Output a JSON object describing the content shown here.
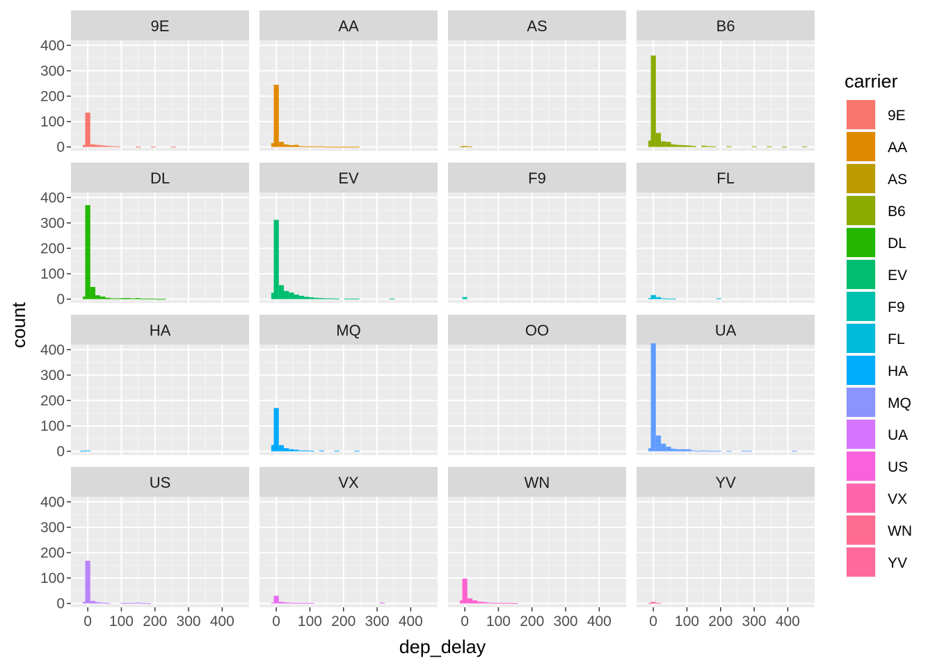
{
  "chart_data": {
    "type": "bar",
    "subtype": "faceted-histogram",
    "xlabel": "dep_delay",
    "ylabel": "count",
    "xlim": [
      -50,
      480
    ],
    "ylim": [
      -15,
      420
    ],
    "x_ticks": [
      0,
      100,
      200,
      300,
      400
    ],
    "y_ticks": [
      0,
      100,
      200,
      300,
      400
    ],
    "bin_width": 15,
    "grid": true,
    "facet_columns": 4,
    "legend": {
      "title": "carrier",
      "placement": "right",
      "entries": [
        {
          "label": "9E",
          "color": "#F8766D"
        },
        {
          "label": "AA",
          "color": "#E18A00"
        },
        {
          "label": "AS",
          "color": "#BE9C00"
        },
        {
          "label": "B6",
          "color": "#8CAB00"
        },
        {
          "label": "DL",
          "color": "#24B700"
        },
        {
          "label": "EV",
          "color": "#00BE70"
        },
        {
          "label": "F9",
          "color": "#00C1AB"
        },
        {
          "label": "FL",
          "color": "#00BBDA"
        },
        {
          "label": "HA",
          "color": "#00ACFC"
        },
        {
          "label": "MQ",
          "color": "#8B93FF"
        },
        {
          "label": "UA",
          "color": "#D575FE"
        },
        {
          "label": "US",
          "color": "#F962DD"
        },
        {
          "label": "VX",
          "color": "#FF65AC"
        },
        {
          "label": "WN",
          "color": "#FF6C91"
        },
        {
          "label": "YV",
          "color": "#FF699C"
        }
      ]
    },
    "panels": [
      {
        "label": "9E",
        "color": "#F8766D",
        "bins": [
          {
            "x": -7.5,
            "count": 8
          },
          {
            "x": 0,
            "count": 135
          },
          {
            "x": 15,
            "count": 10
          },
          {
            "x": 30,
            "count": 8
          },
          {
            "x": 45,
            "count": 6
          },
          {
            "x": 60,
            "count": 4
          },
          {
            "x": 75,
            "count": 3
          },
          {
            "x": 90,
            "count": 2
          },
          {
            "x": 150,
            "count": 1
          },
          {
            "x": 195,
            "count": 1
          },
          {
            "x": 255,
            "count": 1
          }
        ]
      },
      {
        "label": "AA",
        "color": "#E18A00",
        "bins": [
          {
            "x": -7.5,
            "count": 15
          },
          {
            "x": 0,
            "count": 245
          },
          {
            "x": 15,
            "count": 20
          },
          {
            "x": 30,
            "count": 10
          },
          {
            "x": 45,
            "count": 7
          },
          {
            "x": 60,
            "count": 8
          },
          {
            "x": 75,
            "count": 3
          },
          {
            "x": 90,
            "count": 2
          },
          {
            "x": 105,
            "count": 3
          },
          {
            "x": 120,
            "count": 2
          },
          {
            "x": 135,
            "count": 2
          },
          {
            "x": 150,
            "count": 1
          },
          {
            "x": 165,
            "count": 1
          },
          {
            "x": 180,
            "count": 1
          },
          {
            "x": 195,
            "count": 1
          },
          {
            "x": 210,
            "count": 1
          },
          {
            "x": 225,
            "count": 1
          },
          {
            "x": 240,
            "count": 1
          }
        ]
      },
      {
        "label": "AS",
        "color": "#BE9C00",
        "bins": [
          {
            "x": -7.5,
            "count": 2
          },
          {
            "x": 0,
            "count": 4
          },
          {
            "x": 15,
            "count": 2
          }
        ]
      },
      {
        "label": "B6",
        "color": "#8CAB00",
        "bins": [
          {
            "x": -7.5,
            "count": 25
          },
          {
            "x": 0,
            "count": 360
          },
          {
            "x": 15,
            "count": 55
          },
          {
            "x": 30,
            "count": 22
          },
          {
            "x": 45,
            "count": 20
          },
          {
            "x": 60,
            "count": 10
          },
          {
            "x": 75,
            "count": 8
          },
          {
            "x": 90,
            "count": 7
          },
          {
            "x": 105,
            "count": 6
          },
          {
            "x": 120,
            "count": 4
          },
          {
            "x": 150,
            "count": 5
          },
          {
            "x": 165,
            "count": 3
          },
          {
            "x": 180,
            "count": 2
          },
          {
            "x": 225,
            "count": 2
          },
          {
            "x": 300,
            "count": 2
          },
          {
            "x": 345,
            "count": 2
          },
          {
            "x": 390,
            "count": 1
          },
          {
            "x": 450,
            "count": 2
          }
        ]
      },
      {
        "label": "DL",
        "color": "#24B700",
        "bins": [
          {
            "x": -7.5,
            "count": 10
          },
          {
            "x": 0,
            "count": 370
          },
          {
            "x": 15,
            "count": 48
          },
          {
            "x": 30,
            "count": 15
          },
          {
            "x": 45,
            "count": 10
          },
          {
            "x": 60,
            "count": 5
          },
          {
            "x": 75,
            "count": 3
          },
          {
            "x": 90,
            "count": 3
          },
          {
            "x": 105,
            "count": 4
          },
          {
            "x": 120,
            "count": 4
          },
          {
            "x": 135,
            "count": 3
          },
          {
            "x": 150,
            "count": 4
          },
          {
            "x": 165,
            "count": 2
          },
          {
            "x": 180,
            "count": 2
          },
          {
            "x": 195,
            "count": 2
          },
          {
            "x": 210,
            "count": 1
          },
          {
            "x": 225,
            "count": 1
          }
        ]
      },
      {
        "label": "EV",
        "color": "#00BE70",
        "bins": [
          {
            "x": -7.5,
            "count": 25
          },
          {
            "x": 0,
            "count": 312
          },
          {
            "x": 15,
            "count": 55
          },
          {
            "x": 30,
            "count": 32
          },
          {
            "x": 45,
            "count": 26
          },
          {
            "x": 60,
            "count": 18
          },
          {
            "x": 75,
            "count": 13
          },
          {
            "x": 90,
            "count": 9
          },
          {
            "x": 105,
            "count": 7
          },
          {
            "x": 120,
            "count": 5
          },
          {
            "x": 135,
            "count": 4
          },
          {
            "x": 150,
            "count": 3
          },
          {
            "x": 165,
            "count": 3
          },
          {
            "x": 180,
            "count": 2
          },
          {
            "x": 210,
            "count": 2
          },
          {
            "x": 225,
            "count": 2
          },
          {
            "x": 240,
            "count": 2
          },
          {
            "x": 345,
            "count": 2
          }
        ]
      },
      {
        "label": "F9",
        "color": "#00C1AB",
        "bins": [
          {
            "x": 0,
            "count": 8
          }
        ]
      },
      {
        "label": "FL",
        "color": "#00BBDA",
        "bins": [
          {
            "x": -7.5,
            "count": 4
          },
          {
            "x": 0,
            "count": 16
          },
          {
            "x": 15,
            "count": 8
          },
          {
            "x": 30,
            "count": 3
          },
          {
            "x": 45,
            "count": 2
          },
          {
            "x": 60,
            "count": 2
          },
          {
            "x": 195,
            "count": 3
          }
        ]
      },
      {
        "label": "HA",
        "color": "#00ACFC",
        "bins": [
          {
            "x": -15,
            "count": 2
          },
          {
            "x": 0,
            "count": 3
          }
        ]
      },
      {
        "label": "MQ",
        "color": "#00A9FF",
        "bins": [
          {
            "x": -7.5,
            "count": 25
          },
          {
            "x": 0,
            "count": 170
          },
          {
            "x": 15,
            "count": 24
          },
          {
            "x": 30,
            "count": 12
          },
          {
            "x": 45,
            "count": 8
          },
          {
            "x": 60,
            "count": 6
          },
          {
            "x": 75,
            "count": 3
          },
          {
            "x": 90,
            "count": 3
          },
          {
            "x": 105,
            "count": 2
          },
          {
            "x": 135,
            "count": 3
          },
          {
            "x": 180,
            "count": 2
          },
          {
            "x": 240,
            "count": 2
          }
        ]
      },
      {
        "label": "OO",
        "color": "#7F96FF",
        "bins": []
      },
      {
        "label": "UA",
        "color": "#619CFF",
        "bins": [
          {
            "x": -7.5,
            "count": 12
          },
          {
            "x": 0,
            "count": 425
          },
          {
            "x": 15,
            "count": 62
          },
          {
            "x": 30,
            "count": 30
          },
          {
            "x": 45,
            "count": 18
          },
          {
            "x": 60,
            "count": 10
          },
          {
            "x": 75,
            "count": 8
          },
          {
            "x": 90,
            "count": 8
          },
          {
            "x": 105,
            "count": 8
          },
          {
            "x": 120,
            "count": 3
          },
          {
            "x": 135,
            "count": 2
          },
          {
            "x": 150,
            "count": 3
          },
          {
            "x": 165,
            "count": 2
          },
          {
            "x": 180,
            "count": 2
          },
          {
            "x": 195,
            "count": 2
          },
          {
            "x": 225,
            "count": 2
          },
          {
            "x": 270,
            "count": 2
          },
          {
            "x": 285,
            "count": 2
          },
          {
            "x": 420,
            "count": 2
          }
        ]
      },
      {
        "label": "US",
        "color": "#B983FF",
        "bins": [
          {
            "x": -7.5,
            "count": 6
          },
          {
            "x": 0,
            "count": 168
          },
          {
            "x": 15,
            "count": 10
          },
          {
            "x": 30,
            "count": 5
          },
          {
            "x": 45,
            "count": 3
          },
          {
            "x": 60,
            "count": 2
          },
          {
            "x": 105,
            "count": 2
          },
          {
            "x": 120,
            "count": 2
          },
          {
            "x": 135,
            "count": 2
          },
          {
            "x": 150,
            "count": 3
          },
          {
            "x": 165,
            "count": 2
          },
          {
            "x": 180,
            "count": 1
          }
        ]
      },
      {
        "label": "VX",
        "color": "#E76BF3",
        "bins": [
          {
            "x": -7.5,
            "count": 3
          },
          {
            "x": 0,
            "count": 30
          },
          {
            "x": 15,
            "count": 6
          },
          {
            "x": 30,
            "count": 4
          },
          {
            "x": 45,
            "count": 3
          },
          {
            "x": 60,
            "count": 2
          },
          {
            "x": 75,
            "count": 2
          },
          {
            "x": 90,
            "count": 2
          },
          {
            "x": 105,
            "count": 2
          },
          {
            "x": 315,
            "count": 3
          }
        ]
      },
      {
        "label": "WN",
        "color": "#FD61D1",
        "bins": [
          {
            "x": -7.5,
            "count": 12
          },
          {
            "x": 0,
            "count": 98
          },
          {
            "x": 15,
            "count": 20
          },
          {
            "x": 30,
            "count": 12
          },
          {
            "x": 45,
            "count": 7
          },
          {
            "x": 60,
            "count": 5
          },
          {
            "x": 75,
            "count": 3
          },
          {
            "x": 90,
            "count": 2
          },
          {
            "x": 105,
            "count": 2
          },
          {
            "x": 120,
            "count": 2
          },
          {
            "x": 135,
            "count": 2
          },
          {
            "x": 150,
            "count": 1
          }
        ]
      },
      {
        "label": "YV",
        "color": "#FF6A98",
        "bins": [
          {
            "x": -7.5,
            "count": 2
          },
          {
            "x": 0,
            "count": 6
          },
          {
            "x": 15,
            "count": 2
          }
        ]
      }
    ]
  }
}
